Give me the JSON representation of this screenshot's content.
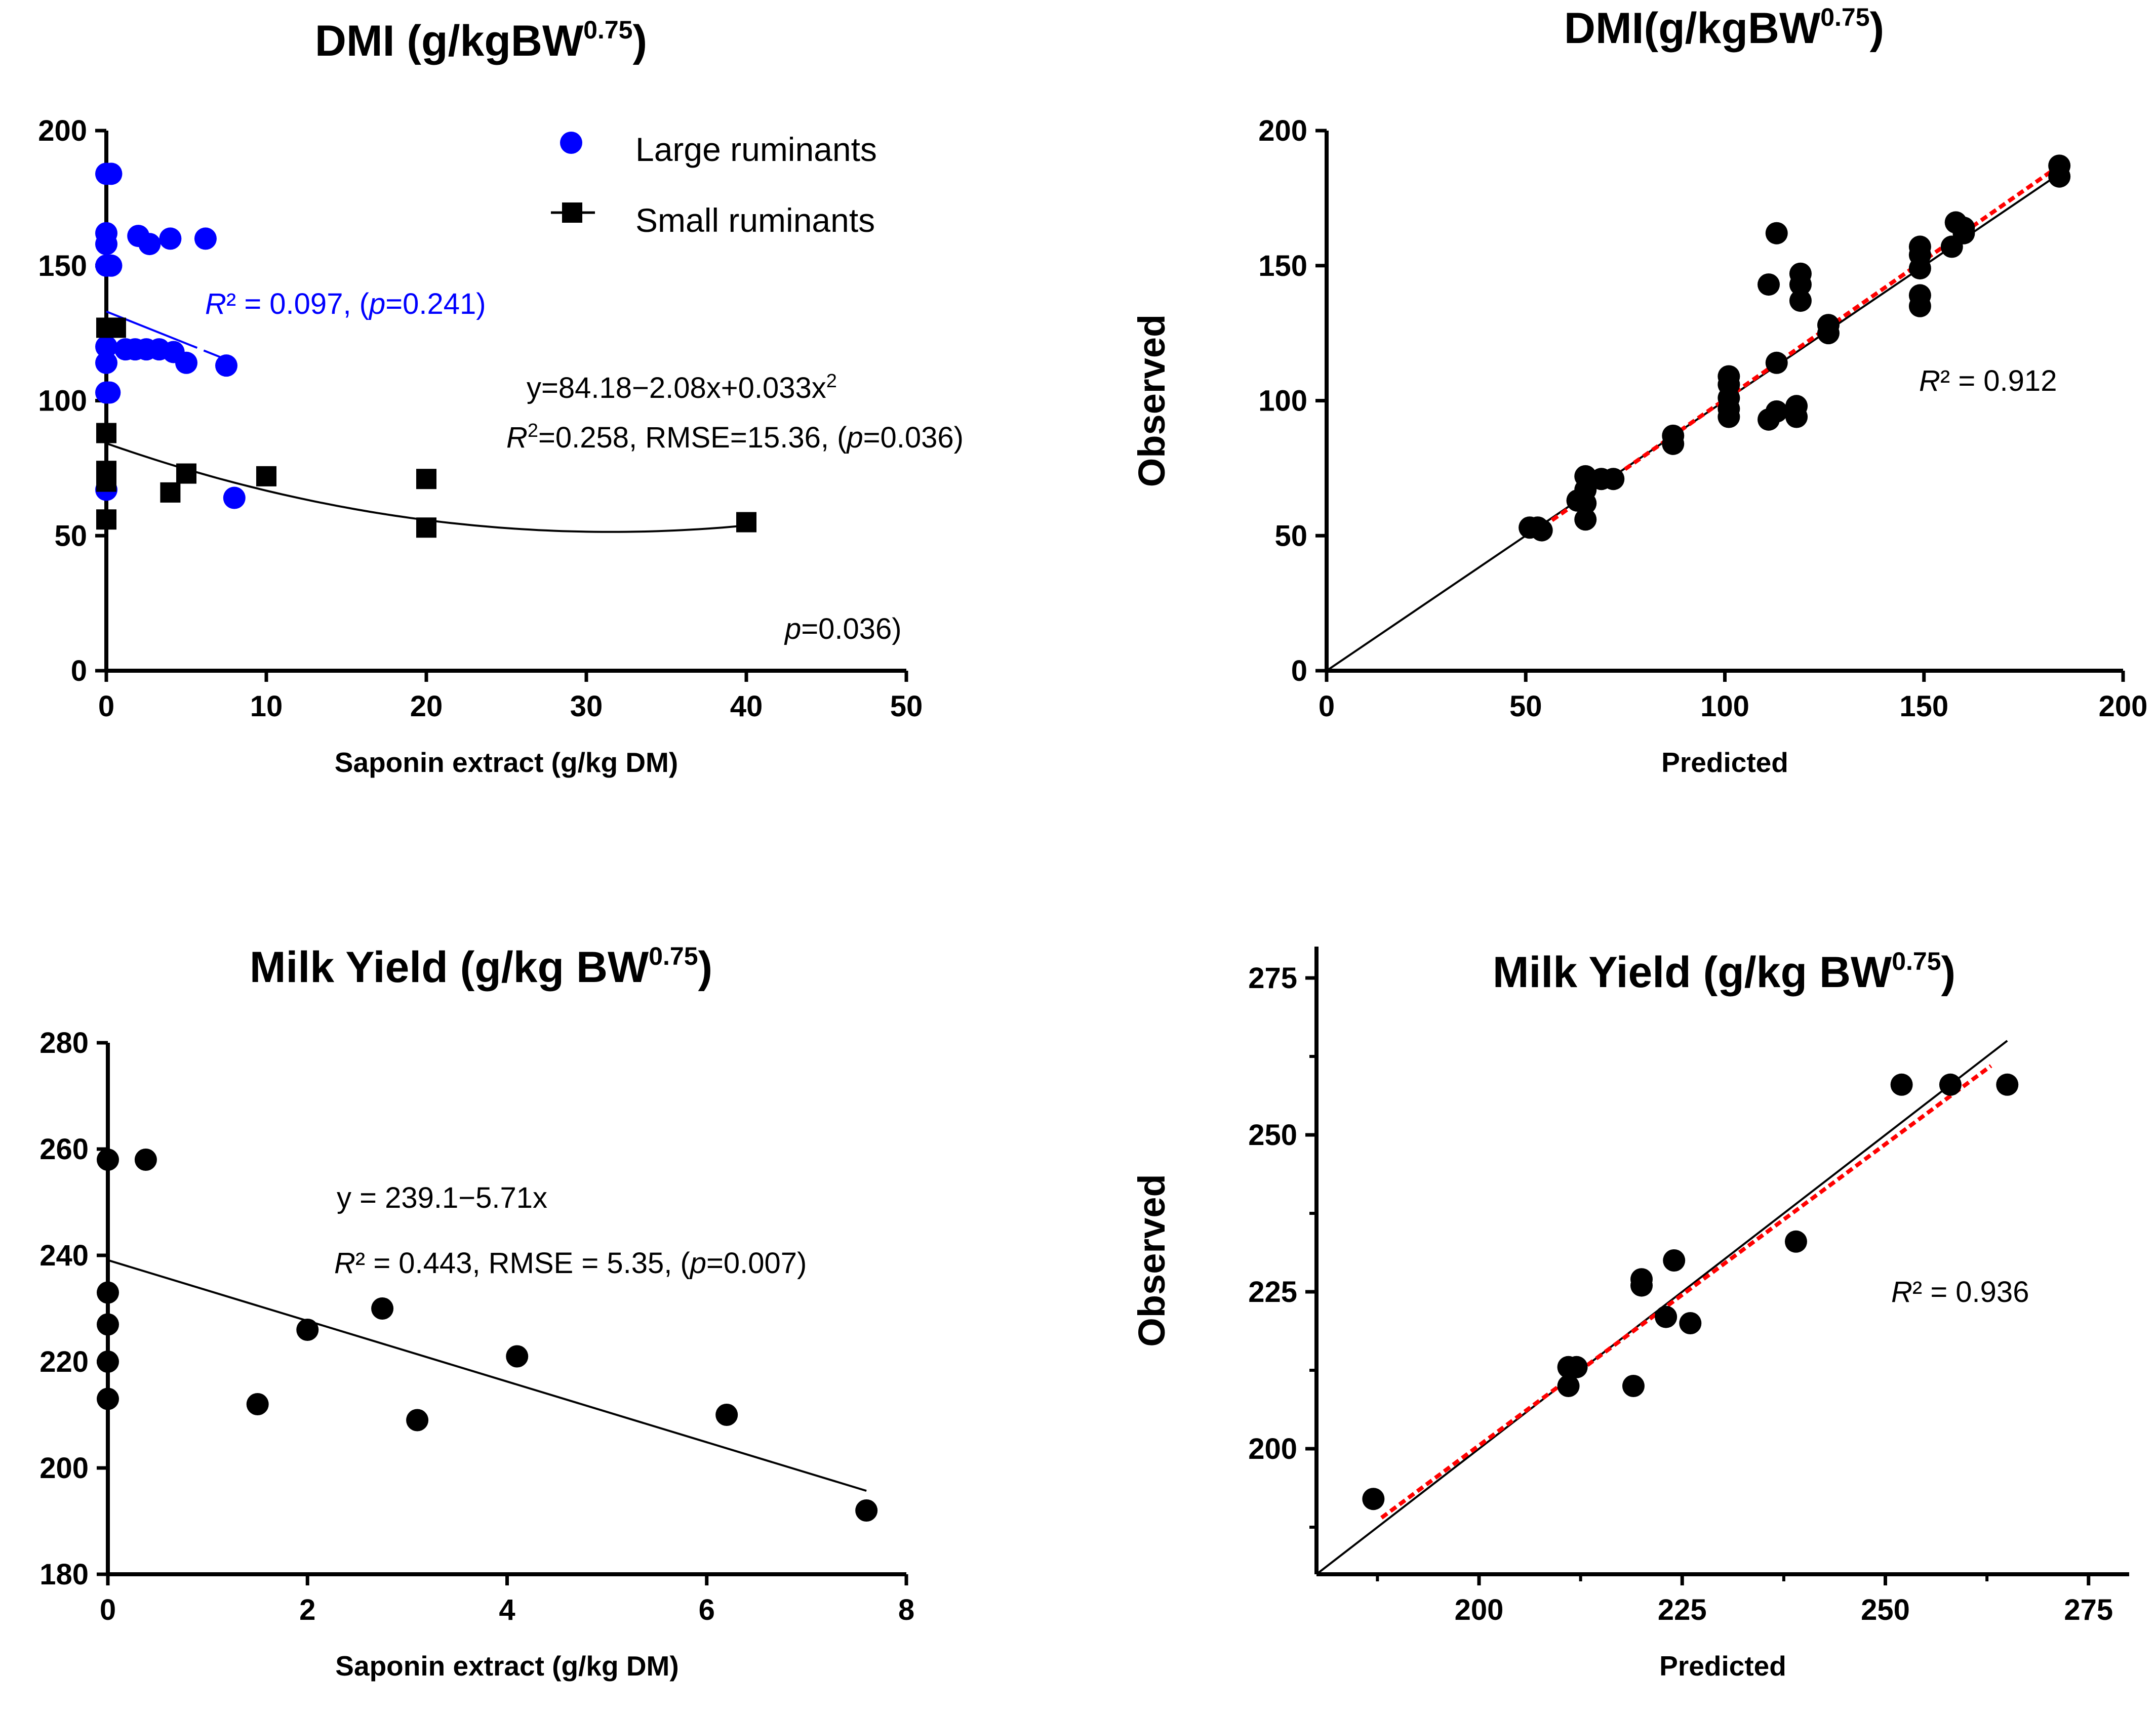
{
  "chart_data": [
    {
      "type": "scatter",
      "title": "DMI (g/kgBW",
      "title_sup": "0.75",
      "title_close": ")",
      "xlabel": "Saponin extract (g/kg DM)",
      "ylabel": "",
      "xlim": [
        0,
        50
      ],
      "ylim": [
        0,
        200
      ],
      "xticks": [
        0,
        10,
        20,
        30,
        40,
        50
      ],
      "yticks": [
        0,
        50,
        100,
        150,
        200
      ],
      "legend_position": "top-right",
      "series": [
        {
          "name": "Large ruminants",
          "marker": "circle",
          "color": "#0000ff",
          "points": [
            [
              0,
              184
            ],
            [
              0.3,
              184
            ],
            [
              0,
              162
            ],
            [
              0,
              158
            ],
            [
              0,
              150
            ],
            [
              0.3,
              150
            ],
            [
              2,
              161
            ],
            [
              2.7,
              158
            ],
            [
              4,
              160
            ],
            [
              6.2,
              160
            ],
            [
              0,
              120
            ],
            [
              1.2,
              119
            ],
            [
              1.8,
              119
            ],
            [
              2.5,
              119
            ],
            [
              3.3,
              119
            ],
            [
              4.2,
              118
            ],
            [
              0,
              114
            ],
            [
              5,
              114
            ],
            [
              7.5,
              113
            ],
            [
              0,
              103
            ],
            [
              0.2,
              103
            ],
            [
              0,
              67
            ],
            [
              8,
              64
            ]
          ]
        },
        {
          "name": "Small ruminants",
          "marker": "square",
          "color": "#000000",
          "points": [
            [
              0,
              127
            ],
            [
              0.6,
              127
            ],
            [
              0,
              88
            ],
            [
              0,
              74
            ],
            [
              0,
              70
            ],
            [
              0,
              56
            ],
            [
              4,
              66
            ],
            [
              5,
              73
            ],
            [
              10,
              72
            ],
            [
              20,
              71
            ],
            [
              20,
              53
            ],
            [
              40,
              55
            ]
          ]
        }
      ],
      "fits": [
        {
          "type": "linear",
          "color": "#0000ff",
          "x_range": [
            0,
            7.6
          ],
          "y_start": 133,
          "y_end": 115
        },
        {
          "type": "quadratic",
          "color": "#000000",
          "coefficients": [
            84.18,
            -2.08,
            0.033
          ],
          "x_range": [
            0,
            40
          ]
        }
      ],
      "annotations": {
        "blue_r2": "R² = 0.097, (p=0.241)",
        "equation": "y=84.18−2.08x+0.033x2",
        "stats": "R2=0.258, RMSE=15.36, (p=0.036)",
        "trailing": "p=0.036)"
      }
    },
    {
      "type": "scatter",
      "title": "DMI(g/kgBW",
      "title_sup": "0.75",
      "title_close": ")",
      "xlabel": "Predicted",
      "ylabel": "Observed",
      "xlim": [
        0,
        200
      ],
      "ylim": [
        0,
        200
      ],
      "xticks": [
        0,
        50,
        100,
        150,
        200
      ],
      "yticks": [
        0,
        50,
        100,
        150,
        200
      ],
      "points": [
        [
          184,
          187
        ],
        [
          184,
          183
        ],
        [
          160,
          162
        ],
        [
          158,
          166
        ],
        [
          157,
          157
        ],
        [
          160,
          164
        ],
        [
          149,
          157
        ],
        [
          149,
          154
        ],
        [
          149,
          149
        ],
        [
          149,
          139
        ],
        [
          149,
          135
        ],
        [
          126,
          128
        ],
        [
          126,
          125
        ],
        [
          119,
          147
        ],
        [
          119,
          143
        ],
        [
          119,
          137
        ],
        [
          118,
          98
        ],
        [
          118,
          94
        ],
        [
          113,
          162
        ],
        [
          111,
          143
        ],
        [
          113,
          114
        ],
        [
          113,
          96
        ],
        [
          111,
          93
        ],
        [
          101,
          109
        ],
        [
          101,
          106
        ],
        [
          101,
          101
        ],
        [
          101,
          97
        ],
        [
          101,
          94
        ],
        [
          87,
          87
        ],
        [
          87,
          84
        ],
        [
          72,
          71
        ],
        [
          69,
          71
        ],
        [
          65,
          72
        ],
        [
          65,
          67
        ],
        [
          65,
          62
        ],
        [
          63,
          63
        ],
        [
          65,
          56
        ],
        [
          53,
          53
        ],
        [
          51,
          53
        ],
        [
          54,
          52
        ]
      ],
      "identity_line": [
        0,
        184
      ],
      "fit_line": {
        "color": "#ff0000",
        "x_range": [
          52,
          184
        ],
        "y_start": 51,
        "y_end": 187
      },
      "annotations": {
        "r2": "R² = 0.912"
      }
    },
    {
      "type": "scatter",
      "title": "Milk Yield (g/kg BW",
      "title_sup": "0.75",
      "title_close": ")",
      "xlabel": "Saponin extract (g/kg DM)",
      "ylabel": "",
      "xlim": [
        0,
        8
      ],
      "ylim": [
        180,
        280
      ],
      "xticks": [
        0,
        2,
        4,
        6,
        8
      ],
      "yticks": [
        180,
        200,
        220,
        240,
        260,
        280
      ],
      "points": [
        [
          0,
          258
        ],
        [
          0.38,
          258
        ],
        [
          0,
          233
        ],
        [
          0,
          227
        ],
        [
          0,
          220
        ],
        [
          0,
          213
        ],
        [
          1.5,
          212
        ],
        [
          2,
          226
        ],
        [
          2.75,
          230
        ],
        [
          3.1,
          209
        ],
        [
          4.1,
          221
        ],
        [
          6.2,
          210
        ],
        [
          7.6,
          192
        ]
      ],
      "fit": {
        "type": "linear",
        "intercept": 239.1,
        "slope": -5.71,
        "x_range": [
          0,
          7.6
        ]
      },
      "annotations": {
        "equation": "y = 239.1−5.71x",
        "stats": "R² = 0.443, RMSE = 5.35, (p=0.007)"
      }
    },
    {
      "type": "scatter",
      "title": "Milk Yield (g/kg BW",
      "title_sup": "0.75",
      "title_close": ")",
      "xlabel": "Predicted",
      "ylabel": "Observed",
      "xlim": [
        180,
        280
      ],
      "ylim": [
        180,
        280
      ],
      "xticks": [
        200,
        225,
        250,
        275
      ],
      "yticks": [
        200,
        225,
        250,
        275
      ],
      "points": [
        [
          187,
          192
        ],
        [
          211,
          213
        ],
        [
          212,
          213
        ],
        [
          211,
          210
        ],
        [
          220,
          227
        ],
        [
          220,
          226
        ],
        [
          224,
          230
        ],
        [
          223,
          221
        ],
        [
          226,
          220
        ],
        [
          219,
          210
        ],
        [
          239,
          233
        ],
        [
          252,
          258
        ],
        [
          258,
          258
        ],
        [
          265,
          258
        ]
      ],
      "identity_line": [
        180,
        265
      ],
      "fit_line": {
        "color": "#ff0000",
        "x_range": [
          188,
          263
        ],
        "y_start": 189,
        "y_end": 261
      },
      "annotations": {
        "r2": "R² = 0.936"
      }
    }
  ]
}
